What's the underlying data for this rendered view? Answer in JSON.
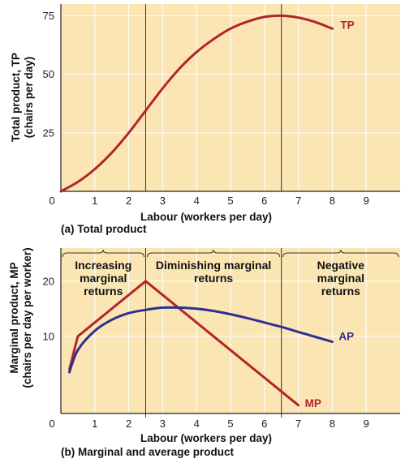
{
  "colors": {
    "plot_background": "#fbe6b3",
    "grid": "#ffffff",
    "tp": "#b3242b",
    "mp": "#b3242b",
    "ap": "#2f2f8f",
    "axis": "#222222"
  },
  "chart_data": [
    {
      "type": "line",
      "caption": "(a) Total product",
      "xlabel": "Labour (workers per day)",
      "ylabel": "Total product, TP",
      "ylabel_units": "(chairs per day)",
      "xlim": [
        0,
        10
      ],
      "ylim": [
        0,
        80
      ],
      "xticks": [
        "0",
        "1",
        "2",
        "3",
        "4",
        "5",
        "6",
        "7",
        "8",
        "9"
      ],
      "yticks": [
        "25",
        "50",
        "75"
      ],
      "grid": true,
      "vlines": [
        2.5,
        6.5
      ],
      "series": [
        {
          "name": "TP",
          "color": "#b3242b",
          "x": [
            0,
            0.5,
            1,
            1.5,
            2,
            2.5,
            3,
            3.5,
            4,
            4.5,
            5,
            5.5,
            6,
            6.5,
            7,
            7.5,
            8
          ],
          "y": [
            0,
            4,
            9.5,
            16.5,
            25,
            34.5,
            44,
            52.5,
            59.5,
            65,
            69.5,
            72.5,
            74.5,
            75,
            74.2,
            72.3,
            69.5
          ]
        }
      ]
    },
    {
      "type": "line",
      "caption": "(b) Marginal and average product",
      "xlabel": "Labour (workers per day)",
      "ylabel": "Marginal product, MP",
      "ylabel_units": "(chairs per day per worker)",
      "xlim": [
        0,
        10
      ],
      "ylim": [
        -4,
        26
      ],
      "xticks": [
        "0",
        "1",
        "2",
        "3",
        "4",
        "5",
        "6",
        "7",
        "8",
        "9"
      ],
      "yticks": [
        "10",
        "20"
      ],
      "grid": true,
      "vlines": [
        2.5,
        6.5
      ],
      "regions": [
        {
          "label": [
            "Increasing",
            "marginal",
            "returns"
          ],
          "from": 0,
          "to": 2.5
        },
        {
          "label": [
            "Diminishing marginal",
            "returns"
          ],
          "from": 2.5,
          "to": 6.5
        },
        {
          "label": [
            "Negative",
            "marginal",
            "returns"
          ],
          "from": 6.5,
          "to": 10
        }
      ],
      "series": [
        {
          "name": "MP",
          "color": "#b3242b",
          "x": [
            0.25,
            0.5,
            2.5,
            6.5,
            7
          ],
          "y": [
            4,
            10,
            20,
            0,
            -2.5
          ]
        },
        {
          "name": "AP",
          "color": "#2f2f8f",
          "x": [
            0.25,
            0.5,
            1,
            1.5,
            2,
            2.5,
            3,
            3.5,
            4,
            4.5,
            5,
            5.5,
            6,
            6.5,
            7,
            7.5,
            8
          ],
          "y": [
            3.5,
            7.5,
            11,
            13,
            14.2,
            14.8,
            15.2,
            15.2,
            15,
            14.6,
            14,
            13.3,
            12.5,
            11.7,
            10.8,
            9.9,
            9
          ]
        }
      ]
    }
  ]
}
